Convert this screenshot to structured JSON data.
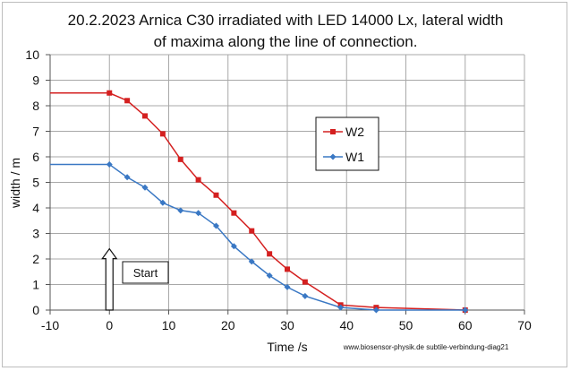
{
  "chart_data": {
    "type": "line",
    "title_lines": [
      "20.2.2023 Arnica C30 irradiated with LED 14000 Lx, lateral width",
      "of maxima along the line of connection."
    ],
    "xlabel": "Time /s",
    "ylabel": "width / m",
    "xlim": [
      -10,
      70
    ],
    "ylim": [
      0,
      10
    ],
    "x_ticks": [
      "-10",
      "0",
      "10",
      "20",
      "30",
      "40",
      "50",
      "60",
      "70"
    ],
    "y_ticks": [
      "0",
      "1",
      "2",
      "3",
      "4",
      "5",
      "6",
      "7",
      "8",
      "9",
      "10"
    ],
    "grid": true,
    "legend_position": "right",
    "series": [
      {
        "name": "W2",
        "color": "#d42020",
        "marker": "square",
        "x": [
          -10,
          0,
          3,
          6,
          9,
          12,
          15,
          18,
          21,
          24,
          27,
          30,
          33,
          39,
          45,
          60
        ],
        "y": [
          8.5,
          8.5,
          8.2,
          7.6,
          6.9,
          5.9,
          5.1,
          4.5,
          3.8,
          3.1,
          2.2,
          1.6,
          1.1,
          0.2,
          0.1,
          0.0
        ]
      },
      {
        "name": "W1",
        "color": "#3a78c4",
        "marker": "diamond",
        "x": [
          -10,
          0,
          3,
          6,
          9,
          12,
          15,
          18,
          21,
          24,
          27,
          30,
          33,
          39,
          45,
          60
        ],
        "y": [
          5.7,
          5.7,
          5.2,
          4.8,
          4.2,
          3.9,
          3.8,
          3.3,
          2.5,
          1.9,
          1.35,
          0.9,
          0.55,
          0.1,
          0.0,
          0.0
        ]
      }
    ],
    "annotation": {
      "label": "Start",
      "arrow_x": 0,
      "arrow_tip_y": 2.4
    },
    "credit": "www.biosensor-physik.de subtile-verbindung-diag21"
  }
}
